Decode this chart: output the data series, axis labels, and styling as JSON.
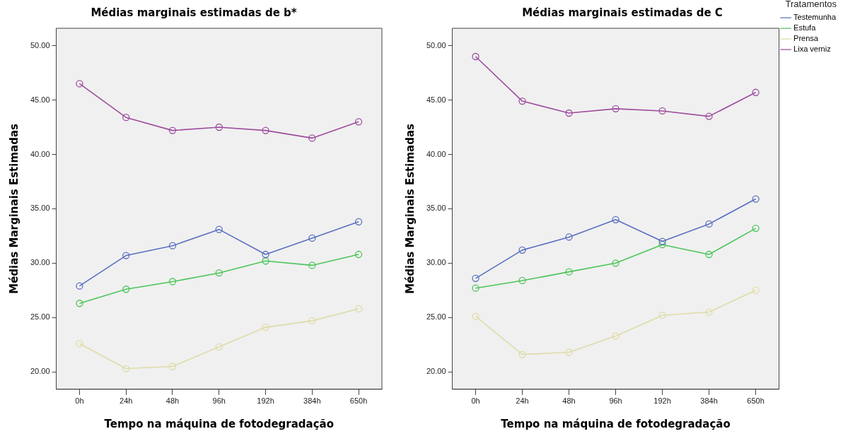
{
  "chart_data": [
    {
      "type": "line",
      "title": "Médias marginais estimadas de b*",
      "xlabel": "Tempo na máquina de fotodegradação",
      "ylabel": "Médias Marginais Estimadas",
      "categories": [
        "0h",
        "24h",
        "48h",
        "96h",
        "192h",
        "384h",
        "650h"
      ],
      "series": [
        {
          "color": "#5a6fc0",
          "values": [
            27.9,
            30.7,
            31.6,
            33.1,
            30.8,
            32.3,
            33.8
          ]
        },
        {
          "color": "#4cc55a",
          "values": [
            26.3,
            27.6,
            28.3,
            29.1,
            30.2,
            29.8,
            30.8
          ]
        },
        {
          "color": "#dedca8",
          "values": [
            22.6,
            20.3,
            20.5,
            22.3,
            24.1,
            24.7,
            25.8
          ]
        },
        {
          "color": "#9e4d9e",
          "values": [
            46.5,
            43.4,
            42.2,
            42.5,
            42.2,
            41.5,
            43.0
          ]
        }
      ],
      "ylim": [
        18.4,
        51.6
      ],
      "yticks": [
        {
          "value": 20,
          "label": "20.00"
        },
        {
          "value": 25,
          "label": "25.00"
        },
        {
          "value": 30,
          "label": "30.00"
        },
        {
          "value": 35,
          "label": "35.00"
        },
        {
          "value": 40,
          "label": "40.00"
        },
        {
          "value": 45,
          "label": "45.00"
        },
        {
          "value": 50,
          "label": "50.00"
        }
      ],
      "grid": false,
      "marker": "circle",
      "line_style": "solid"
    },
    {
      "type": "line",
      "title": "Médias marginais estimadas de C",
      "xlabel": "Tempo na máquina de fotodegradação",
      "ylabel": "Médias Marginais Estimadas",
      "legend_title": "Tratamentos",
      "categories": [
        "0h",
        "24h",
        "48h",
        "96h",
        "192h",
        "384h",
        "650h"
      ],
      "series": [
        {
          "name": "Testemunha",
          "color": "#5a6fc0",
          "values": [
            28.6,
            31.2,
            32.4,
            34.0,
            32.0,
            33.6,
            35.9
          ]
        },
        {
          "name": "Estufa",
          "color": "#4cc55a",
          "values": [
            27.7,
            28.4,
            29.2,
            30.0,
            31.7,
            30.8,
            33.2
          ]
        },
        {
          "name": "Prensa",
          "color": "#dedca8",
          "values": [
            25.1,
            21.6,
            21.8,
            23.3,
            25.2,
            25.5,
            27.5
          ]
        },
        {
          "name": "Lixa verniz",
          "color": "#9e4d9e",
          "values": [
            49.0,
            44.9,
            43.8,
            44.2,
            44.0,
            43.5,
            45.7
          ]
        }
      ],
      "ylim": [
        18.4,
        51.6
      ],
      "yticks": [
        {
          "value": 20,
          "label": "20.00"
        },
        {
          "value": 25,
          "label": "25.00"
        },
        {
          "value": 30,
          "label": "30.00"
        },
        {
          "value": 35,
          "label": "35.00"
        },
        {
          "value": 40,
          "label": "40.00"
        },
        {
          "value": 45,
          "label": "45.00"
        },
        {
          "value": 50,
          "label": "50.00"
        }
      ],
      "grid": false,
      "legend": "right",
      "marker": "circle",
      "line_style": "solid"
    }
  ]
}
